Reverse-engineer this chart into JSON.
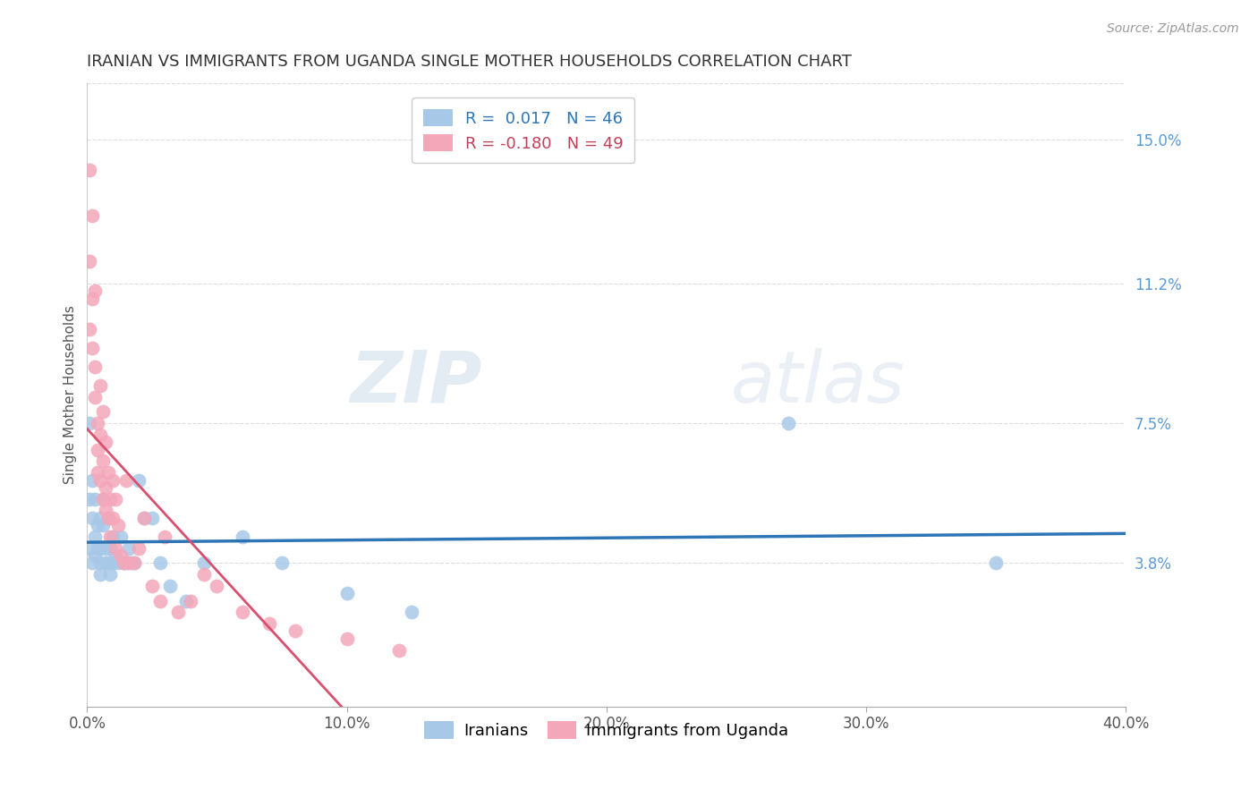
{
  "title": "IRANIAN VS IMMIGRANTS FROM UGANDA SINGLE MOTHER HOUSEHOLDS CORRELATION CHART",
  "source": "Source: ZipAtlas.com",
  "ylabel": "Single Mother Households",
  "xlim": [
    0.0,
    0.4
  ],
  "ylim": [
    0.0,
    0.165
  ],
  "xticks": [
    0.0,
    0.1,
    0.2,
    0.3,
    0.4
  ],
  "xticklabels": [
    "0.0%",
    "10.0%",
    "20.0%",
    "30.0%",
    "40.0%"
  ],
  "yticks_right": [
    0.038,
    0.075,
    0.112,
    0.15
  ],
  "yticklabels_right": [
    "3.8%",
    "7.5%",
    "11.2%",
    "15.0%"
  ],
  "color_iranians": "#a8c8e8",
  "color_uganda": "#f4a7b9",
  "color_line_iranians": "#2e75b6",
  "color_line_uganda": "#d94f6e",
  "watermark_zip": "ZIP",
  "watermark_atlas": "atlas",
  "iranians_x": [
    0.001,
    0.001,
    0.001,
    0.002,
    0.002,
    0.002,
    0.003,
    0.003,
    0.003,
    0.004,
    0.004,
    0.005,
    0.005,
    0.005,
    0.005,
    0.006,
    0.006,
    0.007,
    0.007,
    0.008,
    0.008,
    0.009,
    0.009,
    0.01,
    0.01,
    0.011,
    0.012,
    0.013,
    0.014,
    0.015,
    0.016,
    0.017,
    0.018,
    0.02,
    0.022,
    0.025,
    0.028,
    0.032,
    0.038,
    0.045,
    0.06,
    0.075,
    0.1,
    0.125,
    0.27,
    0.35
  ],
  "iranians_y": [
    0.075,
    0.055,
    0.042,
    0.06,
    0.05,
    0.038,
    0.055,
    0.045,
    0.04,
    0.048,
    0.042,
    0.05,
    0.038,
    0.042,
    0.035,
    0.055,
    0.048,
    0.038,
    0.042,
    0.05,
    0.038,
    0.042,
    0.035,
    0.045,
    0.038,
    0.04,
    0.038,
    0.045,
    0.038,
    0.038,
    0.042,
    0.038,
    0.038,
    0.06,
    0.05,
    0.05,
    0.038,
    0.032,
    0.028,
    0.038,
    0.045,
    0.038,
    0.03,
    0.025,
    0.075,
    0.038
  ],
  "uganda_x": [
    0.001,
    0.001,
    0.001,
    0.002,
    0.002,
    0.002,
    0.003,
    0.003,
    0.003,
    0.004,
    0.004,
    0.004,
    0.005,
    0.005,
    0.005,
    0.006,
    0.006,
    0.006,
    0.007,
    0.007,
    0.007,
    0.008,
    0.008,
    0.009,
    0.009,
    0.01,
    0.01,
    0.011,
    0.011,
    0.012,
    0.013,
    0.014,
    0.015,
    0.016,
    0.018,
    0.02,
    0.022,
    0.025,
    0.028,
    0.03,
    0.035,
    0.04,
    0.045,
    0.05,
    0.06,
    0.07,
    0.08,
    0.1,
    0.12
  ],
  "uganda_y": [
    0.142,
    0.118,
    0.1,
    0.13,
    0.108,
    0.095,
    0.11,
    0.09,
    0.082,
    0.075,
    0.068,
    0.062,
    0.085,
    0.072,
    0.06,
    0.078,
    0.065,
    0.055,
    0.07,
    0.058,
    0.052,
    0.062,
    0.05,
    0.055,
    0.045,
    0.06,
    0.05,
    0.055,
    0.042,
    0.048,
    0.04,
    0.038,
    0.06,
    0.038,
    0.038,
    0.042,
    0.05,
    0.032,
    0.028,
    0.045,
    0.025,
    0.028,
    0.035,
    0.032,
    0.025,
    0.022,
    0.02,
    0.018,
    0.015
  ]
}
